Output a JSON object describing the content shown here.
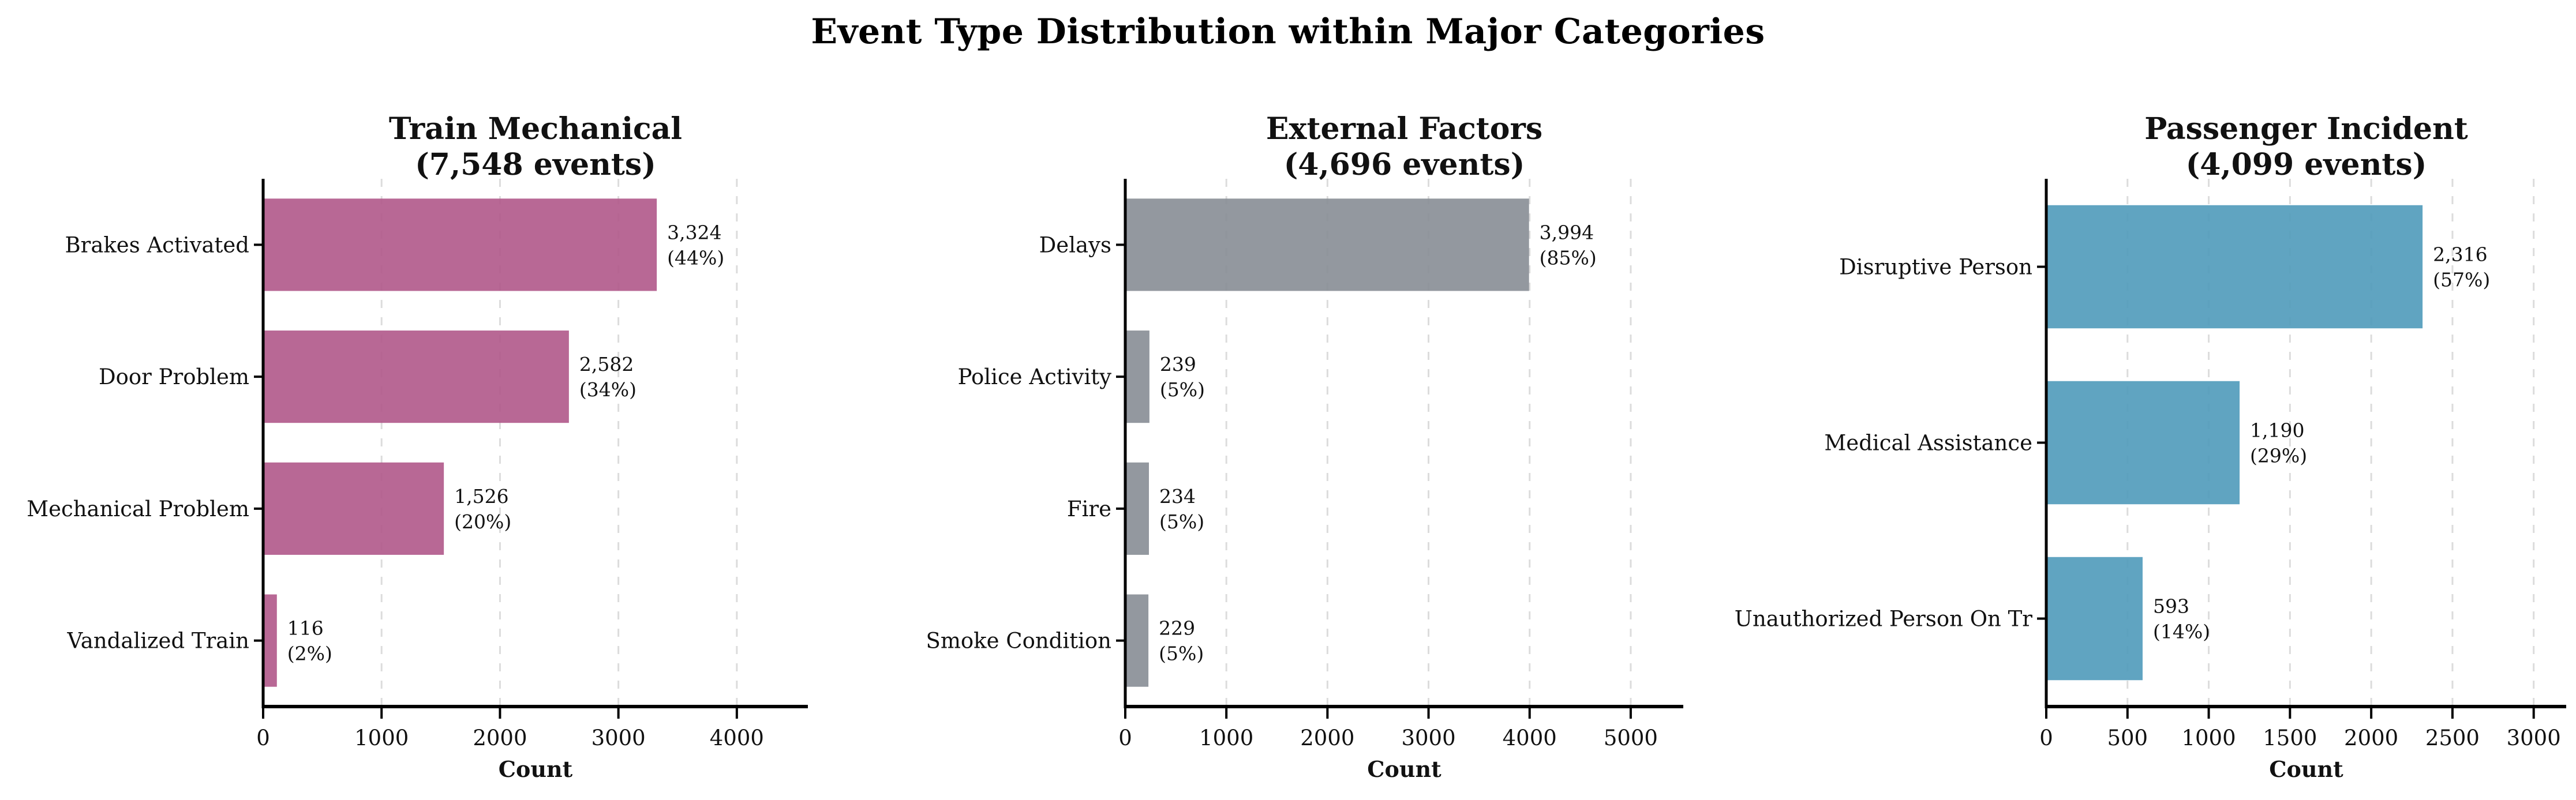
{
  "page": {
    "title": "Event Type Distribution within Major Categories"
  },
  "chart_data": [
    {
      "type": "bar",
      "orientation": "horizontal",
      "title": "Train Mechanical",
      "subtitle": "(7,548 events)",
      "total_events": 7548,
      "title_color": "#AE4480",
      "bar_color": "#B0588A",
      "categories": [
        "Brakes Activated",
        "Door Problem",
        "Mechanical Problem",
        "Vandalized Train"
      ],
      "values": [
        3324,
        2582,
        1526,
        116
      ],
      "value_labels": [
        "3,324",
        "2,582",
        "1,526",
        "116"
      ],
      "pct_labels": [
        "(44%)",
        "(34%)",
        "(20%)",
        "(2%)"
      ],
      "xlabel": "Count",
      "xticks": [
        0,
        1000,
        2000,
        3000,
        4000
      ],
      "xlim": [
        0,
        4600
      ],
      "grid": "vertical-dashed"
    },
    {
      "type": "bar",
      "orientation": "horizontal",
      "title": "External Factors",
      "subtitle": "(4,696 events)",
      "total_events": 4696,
      "title_color": "#6F7781",
      "bar_color": "#878D95",
      "categories": [
        "Delays",
        "Police Activity",
        "Fire",
        "Smoke Condition"
      ],
      "values": [
        3994,
        239,
        234,
        229
      ],
      "value_labels": [
        "3,994",
        "239",
        "234",
        "229"
      ],
      "pct_labels": [
        "(85%)",
        "(5%)",
        "(5%)",
        "(5%)"
      ],
      "xlabel": "Count",
      "xticks": [
        0,
        1000,
        2000,
        3000,
        4000,
        5000
      ],
      "xlim": [
        0,
        5520
      ],
      "grid": "vertical-dashed"
    },
    {
      "type": "bar",
      "orientation": "horizontal",
      "title": "Passenger Incident",
      "subtitle": "(4,099 events)",
      "total_events": 4099,
      "title_color": "#3289B0",
      "bar_color": "#4F9ABA",
      "categories": [
        "Disruptive Person",
        "Medical Assistance",
        "Unauthorized Person On Tr"
      ],
      "values": [
        2316,
        1190,
        593
      ],
      "value_labels": [
        "2,316",
        "1,190",
        "593"
      ],
      "pct_labels": [
        "(57%)",
        "(29%)",
        "(14%)"
      ],
      "xlabel": "Count",
      "xticks": [
        0,
        500,
        1000,
        1500,
        2000,
        2500,
        3000
      ],
      "xlim": [
        0,
        3200
      ],
      "grid": "vertical-dashed"
    }
  ]
}
